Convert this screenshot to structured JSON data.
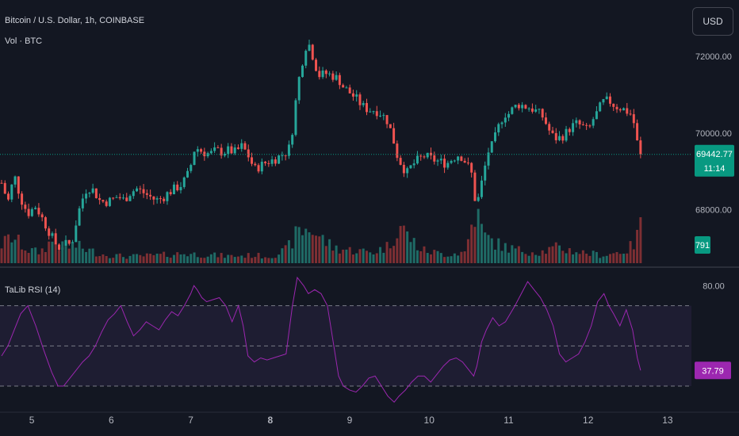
{
  "header": {
    "symbol_title": "Bitcoin / U.S. Dollar, 1h, COINBASE",
    "volume_label": "Vol · BTC",
    "currency_button": "USD"
  },
  "colors": {
    "background": "#131722",
    "up": "#26a69a",
    "down": "#ef5350",
    "volume_up": "#1f6b66",
    "volume_down": "#7e2f33",
    "rsi_line": "#9c27b0",
    "rsi_band": "#7e57c2",
    "grid_text": "#b2b5be",
    "price_tag": "#089981"
  },
  "chart_data": [
    {
      "type": "candlestick",
      "title": "Bitcoin / U.S. Dollar, 1h, COINBASE",
      "x_tick_labels": [
        "5",
        "6",
        "7",
        "8",
        "9",
        "10",
        "11",
        "12",
        "13"
      ],
      "x_tick_values": [
        5,
        6,
        7,
        8,
        9,
        10,
        11,
        12,
        13
      ],
      "y_tick_labels": [
        "72000.00",
        "70000.00",
        "68000.00"
      ],
      "y_tick_values": [
        72000,
        70000,
        68000
      ],
      "ylim": [
        66650,
        73300
      ],
      "xlim": [
        4.6,
        13.3
      ],
      "last_price": 69442.77,
      "last_price_label": "69442.77",
      "countdown_label": "11:14",
      "grid": false,
      "series_path": [
        [
          4.62,
          68700
        ],
        [
          4.7,
          68200
        ],
        [
          4.78,
          68900
        ],
        [
          4.86,
          68300
        ],
        [
          4.95,
          67900
        ],
        [
          5.05,
          68100
        ],
        [
          5.15,
          67700
        ],
        [
          5.25,
          67300
        ],
        [
          5.33,
          67000
        ],
        [
          5.4,
          67100
        ],
        [
          5.5,
          67100
        ],
        [
          5.55,
          67600
        ],
        [
          5.62,
          68200
        ],
        [
          5.7,
          68600
        ],
        [
          5.78,
          68500
        ],
        [
          5.85,
          68250
        ],
        [
          5.92,
          68200
        ],
        [
          6.0,
          68250
        ],
        [
          6.08,
          68350
        ],
        [
          6.16,
          68250
        ],
        [
          6.24,
          68450
        ],
        [
          6.32,
          68550
        ],
        [
          6.4,
          68450
        ],
        [
          6.48,
          68350
        ],
        [
          6.56,
          68250
        ],
        [
          6.64,
          68300
        ],
        [
          6.72,
          68450
        ],
        [
          6.8,
          68550
        ],
        [
          6.88,
          68650
        ],
        [
          6.95,
          68850
        ],
        [
          7.0,
          69150
        ],
        [
          7.04,
          69550
        ],
        [
          7.08,
          69600
        ],
        [
          7.16,
          69500
        ],
        [
          7.24,
          69450
        ],
        [
          7.32,
          69550
        ],
        [
          7.4,
          69500
        ],
        [
          7.48,
          69550
        ],
        [
          7.56,
          69500
        ],
        [
          7.64,
          69650
        ],
        [
          7.7,
          69500
        ],
        [
          7.75,
          69300
        ],
        [
          7.8,
          69050
        ],
        [
          7.88,
          69150
        ],
        [
          7.96,
          69250
        ],
        [
          8.04,
          69300
        ],
        [
          8.12,
          69400
        ],
        [
          8.2,
          69500
        ],
        [
          8.25,
          69650
        ],
        [
          8.3,
          70400
        ],
        [
          8.34,
          71200
        ],
        [
          8.38,
          71600
        ],
        [
          8.44,
          72250
        ],
        [
          8.5,
          72300
        ],
        [
          8.56,
          71800
        ],
        [
          8.62,
          71500
        ],
        [
          8.7,
          71550
        ],
        [
          8.78,
          71500
        ],
        [
          8.86,
          71400
        ],
        [
          8.92,
          71200
        ],
        [
          9.0,
          71050
        ],
        [
          9.08,
          70900
        ],
        [
          9.16,
          70700
        ],
        [
          9.24,
          70600
        ],
        [
          9.32,
          70600
        ],
        [
          9.4,
          70500
        ],
        [
          9.48,
          70300
        ],
        [
          9.54,
          69900
        ],
        [
          9.6,
          69400
        ],
        [
          9.66,
          69150
        ],
        [
          9.72,
          68950
        ],
        [
          9.78,
          69150
        ],
        [
          9.86,
          69300
        ],
        [
          9.94,
          69400
        ],
        [
          10.0,
          69350
        ],
        [
          10.06,
          69300
        ],
        [
          10.14,
          69250
        ],
        [
          10.22,
          69200
        ],
        [
          10.3,
          69350
        ],
        [
          10.38,
          69450
        ],
        [
          10.44,
          69300
        ],
        [
          10.5,
          69100
        ],
        [
          10.55,
          68850
        ],
        [
          10.58,
          68200
        ],
        [
          10.62,
          68300
        ],
        [
          10.66,
          68700
        ],
        [
          10.7,
          69100
        ],
        [
          10.74,
          69500
        ],
        [
          10.8,
          69700
        ],
        [
          10.88,
          70200
        ],
        [
          10.94,
          70500
        ],
        [
          11.0,
          70500
        ],
        [
          11.06,
          70650
        ],
        [
          11.12,
          70750
        ],
        [
          11.2,
          70700
        ],
        [
          11.28,
          70650
        ],
        [
          11.36,
          70550
        ],
        [
          11.44,
          70400
        ],
        [
          11.5,
          70100
        ],
        [
          11.56,
          69900
        ],
        [
          11.62,
          69850
        ],
        [
          11.7,
          69950
        ],
        [
          11.78,
          70150
        ],
        [
          11.86,
          70250
        ],
        [
          11.94,
          70150
        ],
        [
          12.0,
          70050
        ],
        [
          12.06,
          70350
        ],
        [
          12.12,
          70550
        ],
        [
          12.18,
          70800
        ],
        [
          12.26,
          70850
        ],
        [
          12.34,
          70700
        ],
        [
          12.42,
          70650
        ],
        [
          12.5,
          70550
        ],
        [
          12.56,
          70450
        ],
        [
          12.6,
          69950
        ],
        [
          12.64,
          69500
        ],
        [
          12.66,
          69443
        ]
      ],
      "volume_label": "791",
      "volume_profile": [
        [
          4.62,
          420
        ],
        [
          4.75,
          600
        ],
        [
          4.95,
          300
        ],
        [
          5.1,
          250
        ],
        [
          5.25,
          500
        ],
        [
          5.4,
          350
        ],
        [
          5.55,
          400
        ],
        [
          5.7,
          300
        ],
        [
          5.9,
          200
        ],
        [
          6.2,
          150
        ],
        [
          6.6,
          180
        ],
        [
          6.9,
          220
        ],
        [
          7.1,
          200
        ],
        [
          7.5,
          160
        ],
        [
          7.8,
          180
        ],
        [
          8.0,
          150
        ],
        [
          8.2,
          300
        ],
        [
          8.35,
          700
        ],
        [
          8.5,
          800
        ],
        [
          8.62,
          600
        ],
        [
          8.8,
          350
        ],
        [
          9.0,
          300
        ],
        [
          9.3,
          250
        ],
        [
          9.5,
          400
        ],
        [
          9.62,
          900
        ],
        [
          9.72,
          650
        ],
        [
          9.9,
          300
        ],
        [
          10.2,
          200
        ],
        [
          10.45,
          250
        ],
        [
          10.58,
          1200
        ],
        [
          10.7,
          600
        ],
        [
          10.9,
          400
        ],
        [
          11.1,
          300
        ],
        [
          11.4,
          250
        ],
        [
          11.6,
          350
        ],
        [
          11.9,
          250
        ],
        [
          12.2,
          180
        ],
        [
          12.5,
          300
        ],
        [
          12.6,
          500
        ],
        [
          12.66,
          791
        ]
      ]
    },
    {
      "type": "line",
      "title": "TaLib RSI (14)",
      "y_tick_labels": [
        "80.00"
      ],
      "y_tick_values": [
        80
      ],
      "ylim": [
        17,
        88
      ],
      "band_upper": 70,
      "band_middle": 50,
      "band_lower": 30,
      "last_value": 37.79,
      "last_value_label": "37.79",
      "series": [
        {
          "name": "RSI",
          "x": [
            4.62,
            4.7,
            4.78,
            4.86,
            4.95,
            5.05,
            5.15,
            5.25,
            5.33,
            5.4,
            5.48,
            5.56,
            5.64,
            5.72,
            5.8,
            5.88,
            5.96,
            6.04,
            6.12,
            6.2,
            6.28,
            6.36,
            6.44,
            6.52,
            6.6,
            6.68,
            6.76,
            6.84,
            6.92,
            7.0,
            7.04,
            7.08,
            7.14,
            7.2,
            7.28,
            7.36,
            7.44,
            7.52,
            7.6,
            7.66,
            7.72,
            7.8,
            7.88,
            7.96,
            8.04,
            8.12,
            8.2,
            8.28,
            8.34,
            8.42,
            8.48,
            8.56,
            8.64,
            8.72,
            8.8,
            8.86,
            8.92,
            9.0,
            9.08,
            9.16,
            9.24,
            9.32,
            9.4,
            9.48,
            9.56,
            9.62,
            9.7,
            9.78,
            9.86,
            9.94,
            10.02,
            10.1,
            10.18,
            10.26,
            10.34,
            10.42,
            10.5,
            10.56,
            10.6,
            10.66,
            10.72,
            10.8,
            10.88,
            10.96,
            11.02,
            11.08,
            11.16,
            11.24,
            11.32,
            11.4,
            11.48,
            11.56,
            11.64,
            11.72,
            11.8,
            11.88,
            11.96,
            12.04,
            12.12,
            12.2,
            12.26,
            12.32,
            12.4,
            12.48,
            12.56,
            12.62,
            12.66
          ],
          "values": [
            45,
            50,
            58,
            66,
            70,
            60,
            48,
            37,
            30,
            30,
            34,
            38,
            42,
            45,
            50,
            57,
            63,
            66,
            70,
            62,
            55,
            58,
            62,
            60,
            58,
            63,
            67,
            65,
            70,
            76,
            80,
            78,
            74,
            72,
            73,
            74,
            70,
            62,
            70,
            60,
            45,
            42,
            44,
            43,
            44,
            45,
            46,
            70,
            84,
            80,
            76,
            78,
            76,
            70,
            50,
            35,
            30,
            28,
            27,
            30,
            34,
            35,
            30,
            25,
            22,
            25,
            28,
            32,
            35,
            35,
            32,
            36,
            40,
            43,
            44,
            42,
            38,
            35,
            40,
            52,
            58,
            64,
            60,
            62,
            66,
            70,
            76,
            82,
            78,
            74,
            68,
            60,
            46,
            42,
            44,
            46,
            52,
            60,
            72,
            76,
            70,
            66,
            60,
            68,
            58,
            44,
            37.79
          ]
        }
      ]
    }
  ]
}
